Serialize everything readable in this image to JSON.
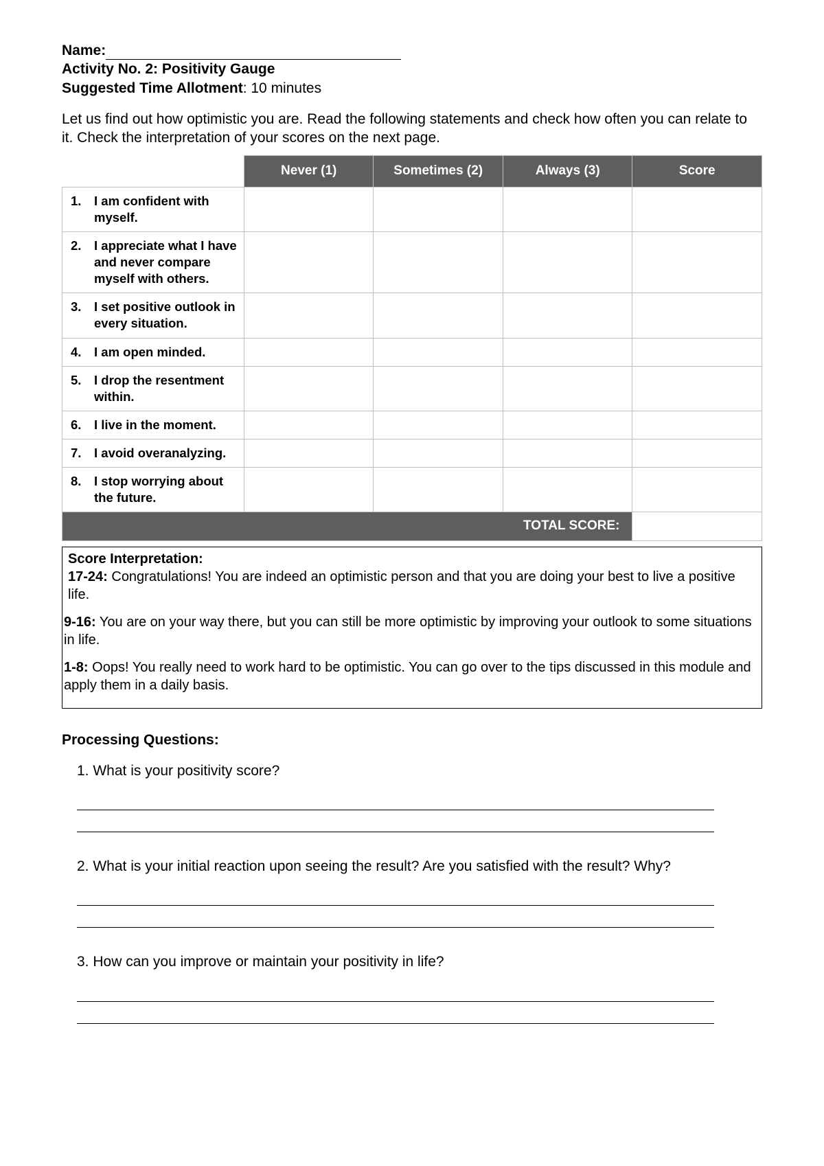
{
  "header": {
    "name_label": "Name:",
    "activity_line": "Activity No. 2: Positivity Gauge",
    "time_label": "Suggested Time Allotment",
    "time_value": ": 10 minutes"
  },
  "intro": "Let us find out how optimistic you are. Read the following statements and check how often you can relate to it. Check the interpretation of your scores on the next page.",
  "table": {
    "headers": {
      "never": "Never (1)",
      "sometimes": "Sometimes (2)",
      "always": "Always (3)",
      "score": "Score"
    },
    "rows": [
      {
        "num": "1.",
        "text": "I am confident with myself."
      },
      {
        "num": "2.",
        "text": "I appreciate what I have and never compare myself with others."
      },
      {
        "num": "3.",
        "text": "I set positive outlook in every situation."
      },
      {
        "num": "4.",
        "text": "I am open minded."
      },
      {
        "num": "5.",
        "text": "I drop the resentment within."
      },
      {
        "num": "6.",
        "text": "I live in the moment."
      },
      {
        "num": "7.",
        "text": "I avoid overanalyzing."
      },
      {
        "num": "8.",
        "text": "I stop worrying about the future."
      }
    ],
    "total_label": "TOTAL SCORE:"
  },
  "interpretation": {
    "title": "Score Interpretation:",
    "items": [
      {
        "range": "17-24:",
        "text": " Congratulations! You are indeed an optimistic person and that you are doing your best to live a positive life."
      },
      {
        "range": "9-16:",
        "text": " You are on your way there, but you can still be more optimistic by improving your outlook to some situations in life."
      },
      {
        "range": "1-8:",
        "text": " Oops! You really need to work hard to be optimistic. You can go over to the tips discussed in this module and apply them in a daily basis."
      }
    ]
  },
  "processing": {
    "title": "Processing Questions",
    "questions": [
      {
        "num": "1.",
        "text": "What is your positivity score?"
      },
      {
        "num": "2.",
        "text": "What is your initial reaction upon seeing the result?  Are you satisfied with the result?  Why?"
      },
      {
        "num": "3.",
        "text": "How can you improve or maintain your positivity in life?"
      }
    ]
  }
}
